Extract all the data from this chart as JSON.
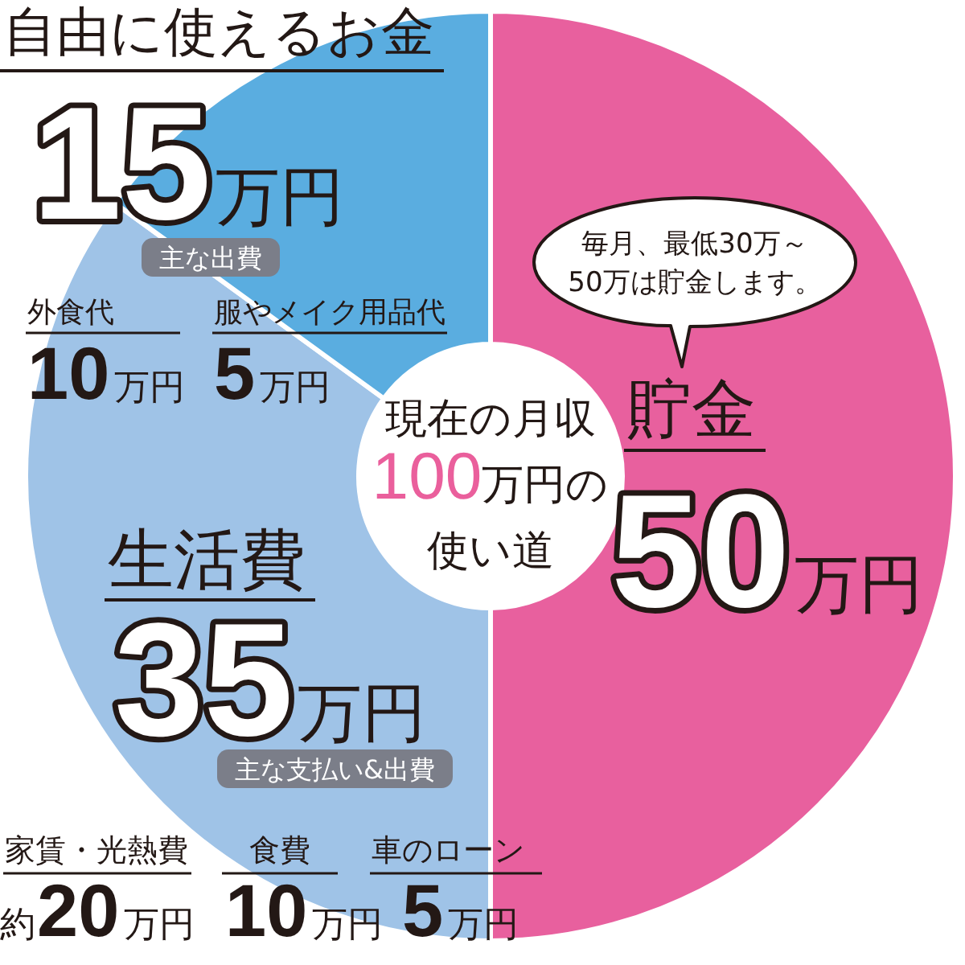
{
  "chart_data": {
    "type": "donut",
    "title": "現在の月収**100**万円の使い道",
    "categories": [
      "貯金",
      "生活費",
      "自由に使えるお金"
    ],
    "values": [
      50,
      35,
      15
    ],
    "colors": [
      "#e8609e",
      "#9fc3e7",
      "#5aade0"
    ],
    "value_labels": [
      "50万円",
      "35万円",
      "15万円"
    ],
    "annotations": [
      "毎月、最低30万～50万は貯金します。",
      "主な出費",
      "外食代",
      "10万円",
      "服やメイク用品代",
      "5万円",
      "主な支払い&出費",
      "家賃・光熱費",
      "約20万円",
      "食費",
      "10万円",
      "車のローン",
      "5万円"
    ]
  }
}
